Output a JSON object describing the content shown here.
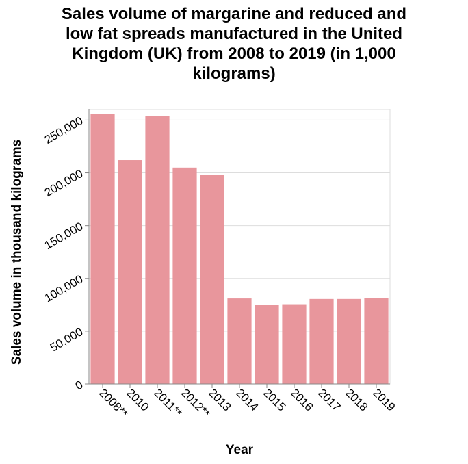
{
  "chart_data": {
    "type": "bar",
    "title_lines": [
      "Sales volume of margarine and reduced and",
      "low fat spreads manufactured in the United",
      "Kingdom (UK) from 2008 to 2019 (in 1,000",
      "kilograms)"
    ],
    "xlabel": "Year",
    "ylabel": "Sales volume in thousand kilograms",
    "categories": [
      "2008**",
      "2010",
      "2011**",
      "2012**",
      "2013",
      "2014",
      "2015",
      "2016",
      "2017",
      "2018",
      "2019"
    ],
    "values": [
      256000,
      212000,
      254000,
      205000,
      198000,
      81000,
      75000,
      75500,
      80500,
      80500,
      81500
    ],
    "ylim": [
      0,
      260000
    ],
    "yticks": [
      0,
      50000,
      100000,
      150000,
      200000,
      250000
    ],
    "ytick_labels": [
      "0",
      "50,000",
      "100,000",
      "150,000",
      "200,000",
      "250,000"
    ],
    "bar_color": "#e8969c",
    "grid": true
  }
}
